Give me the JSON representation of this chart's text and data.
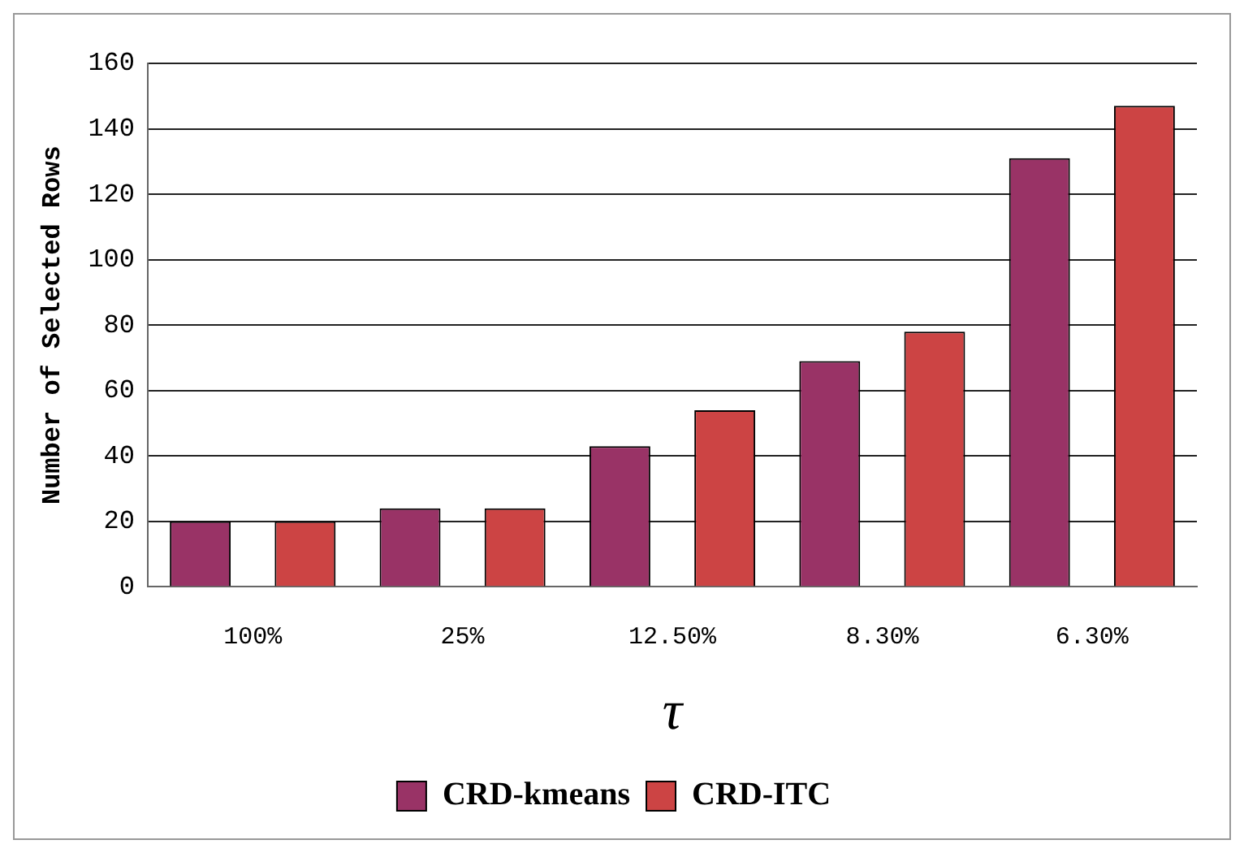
{
  "chart_data": {
    "type": "bar",
    "xlabel": "τ",
    "ylabel": "Number of Selected Rows",
    "categories": [
      "100%",
      "25%",
      "12.50%",
      "8.30%",
      "6.30%"
    ],
    "series": [
      {
        "name": "CRD-kmeans",
        "color": "#993366",
        "values": [
          20,
          24,
          43,
          69,
          131
        ]
      },
      {
        "name": "CRD-ITC",
        "color": "#cc4444",
        "values": [
          20,
          24,
          54,
          78,
          147
        ]
      }
    ],
    "ylim": [
      0,
      160
    ],
    "yticks": [
      0,
      20,
      40,
      60,
      80,
      100,
      120,
      140,
      160
    ],
    "grid": "y",
    "legend": "bottom"
  }
}
